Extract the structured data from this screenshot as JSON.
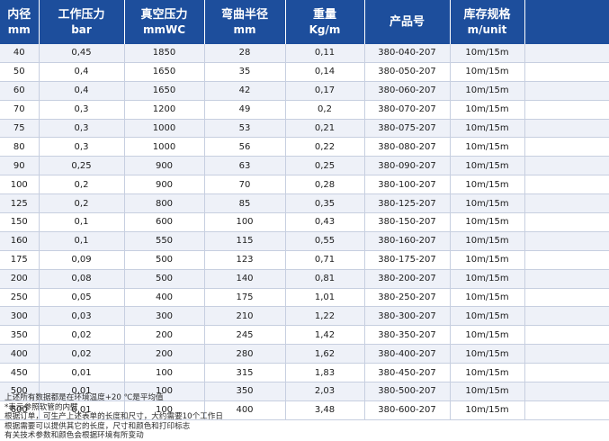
{
  "table": {
    "headers": [
      {
        "cn": "内径",
        "en": "mm"
      },
      {
        "cn": "工作压力",
        "en": "bar"
      },
      {
        "cn": "真空压力",
        "en": "mmWC"
      },
      {
        "cn": "弯曲半径",
        "en": "mm"
      },
      {
        "cn": "重量",
        "en": "Kg/m"
      },
      {
        "cn": "产品号",
        "en": ""
      },
      {
        "cn": "库存规格",
        "en": "m/unit"
      },
      {
        "cn": "",
        "en": ""
      }
    ],
    "rows": [
      [
        "40",
        "0,45",
        "1850",
        "28",
        "0,11",
        "380-040-207",
        "10m/15m",
        ""
      ],
      [
        "50",
        "0,4",
        "1650",
        "35",
        "0,14",
        "380-050-207",
        "10m/15m",
        ""
      ],
      [
        "60",
        "0,4",
        "1650",
        "42",
        "0,17",
        "380-060-207",
        "10m/15m",
        ""
      ],
      [
        "70",
        "0,3",
        "1200",
        "49",
        "0,2",
        "380-070-207",
        "10m/15m",
        ""
      ],
      [
        "75",
        "0,3",
        "1000",
        "53",
        "0,21",
        "380-075-207",
        "10m/15m",
        ""
      ],
      [
        "80",
        "0,3",
        "1000",
        "56",
        "0,22",
        "380-080-207",
        "10m/15m",
        ""
      ],
      [
        "90",
        "0,25",
        "900",
        "63",
        "0,25",
        "380-090-207",
        "10m/15m",
        ""
      ],
      [
        "100",
        "0,2",
        "900",
        "70",
        "0,28",
        "380-100-207",
        "10m/15m",
        ""
      ],
      [
        "125",
        "0,2",
        "800",
        "85",
        "0,35",
        "380-125-207",
        "10m/15m",
        ""
      ],
      [
        "150",
        "0,1",
        "600",
        "100",
        "0,43",
        "380-150-207",
        "10m/15m",
        ""
      ],
      [
        "160",
        "0,1",
        "550",
        "115",
        "0,55",
        "380-160-207",
        "10m/15m",
        ""
      ],
      [
        "175",
        "0,09",
        "500",
        "123",
        "0,71",
        "380-175-207",
        "10m/15m",
        ""
      ],
      [
        "200",
        "0,08",
        "500",
        "140",
        "0,81",
        "380-200-207",
        "10m/15m",
        ""
      ],
      [
        "250",
        "0,05",
        "400",
        "175",
        "1,01",
        "380-250-207",
        "10m/15m",
        ""
      ],
      [
        "300",
        "0,03",
        "300",
        "210",
        "1,22",
        "380-300-207",
        "10m/15m",
        ""
      ],
      [
        "350",
        "0,02",
        "200",
        "245",
        "1,42",
        "380-350-207",
        "10m/15m",
        ""
      ],
      [
        "400",
        "0,02",
        "200",
        "280",
        "1,62",
        "380-400-207",
        "10m/15m",
        ""
      ],
      [
        "450",
        "0,01",
        "100",
        "315",
        "1,83",
        "380-450-207",
        "10m/15m",
        ""
      ],
      [
        "500",
        "0,01",
        "100",
        "350",
        "2,03",
        "380-500-207",
        "10m/15m",
        ""
      ],
      [
        "600",
        "0,01",
        "100",
        "400",
        "3,48",
        "380-600-207",
        "10m/15m",
        ""
      ]
    ]
  },
  "notes": [
    "上述所有数据都是在环境温度+20 ℃是平均值",
    "*表示参照软管的内壁",
    "根据订单，可生产上述表单的长度和尺寸，大约需要10个工作日",
    "根据需要可以提供其它的长度，尺寸和颜色和打印标志",
    "有关技术参数和颜色会根据环境有所变动"
  ],
  "colors": {
    "header_bg": "#1d4e9c",
    "header_text": "#ffffff",
    "row_alt_bg": "#eef1f8",
    "grid_line": "#c7cfe0"
  }
}
